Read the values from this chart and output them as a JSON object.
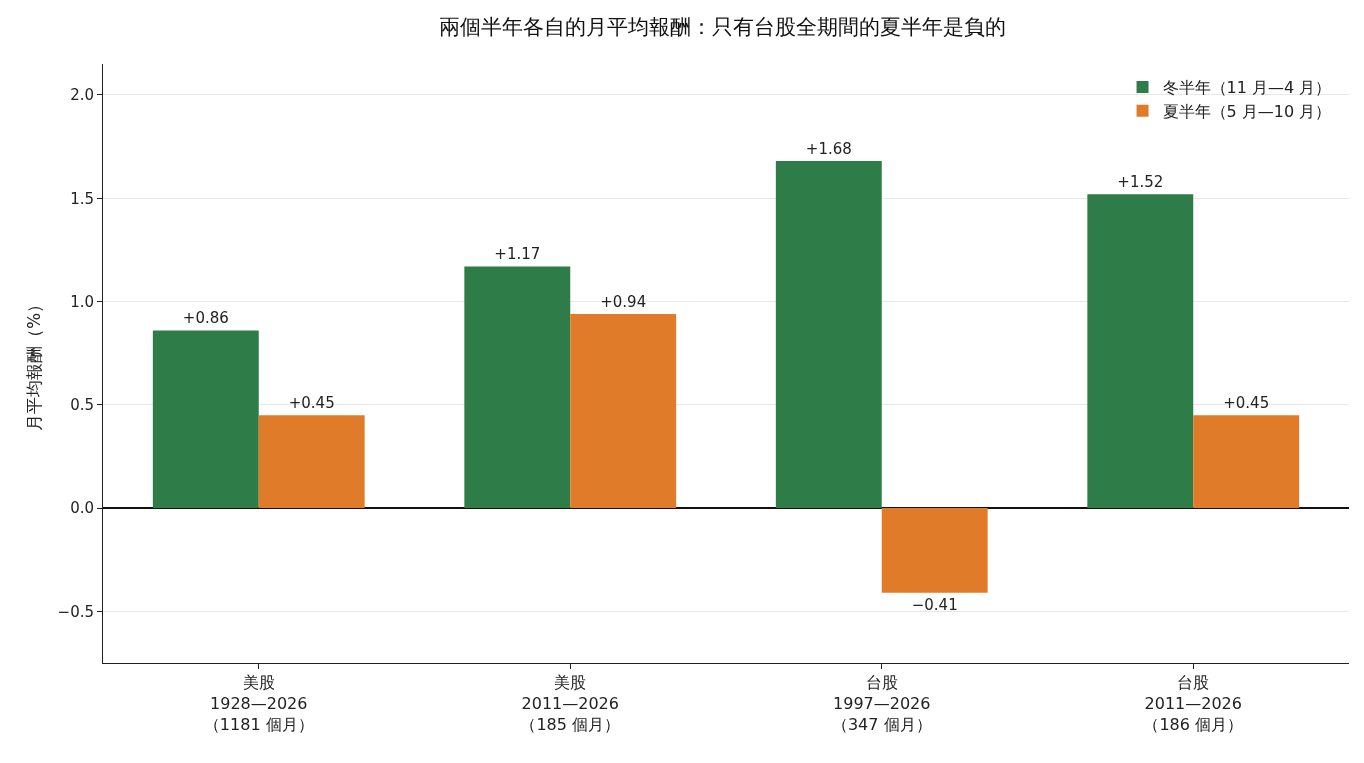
{
  "chart_data": {
    "type": "bar",
    "title": "兩個半年各自的月平均報酬：只有台股全期間的夏半年是負的",
    "ylabel": "月平均報酬（%）",
    "categories": [
      "美股\n1928—2026\n（1181 個月）",
      "美股\n2011—2026\n（185 個月）",
      "台股\n1997—2026\n（347 個月）",
      "台股\n2011—2026\n（186 個月）"
    ],
    "series": [
      {
        "name": "冬半年（11 月—4 月）",
        "color": "#2e7d48",
        "values": [
          0.86,
          1.17,
          1.68,
          1.52
        ],
        "value_labels": [
          "+0.86",
          "+1.17",
          "+1.68",
          "+1.52"
        ]
      },
      {
        "name": "夏半年（5 月—10 月）",
        "color": "#e07b2a",
        "values": [
          0.45,
          0.94,
          -0.41,
          0.45
        ],
        "value_labels": [
          "+0.45",
          "+0.94",
          "−0.41",
          "+0.45"
        ]
      }
    ],
    "ylim": [
      -0.75,
      2.15
    ],
    "yticks": [
      {
        "value": -0.5,
        "label": "−0.5"
      },
      {
        "value": 0,
        "label": "0.0"
      },
      {
        "value": 0.5,
        "label": "0.5"
      },
      {
        "value": 1,
        "label": "1.0"
      },
      {
        "value": 1.5,
        "label": "1.5"
      },
      {
        "value": 2,
        "label": "2.0"
      }
    ],
    "grid": "y",
    "legend": "top right"
  }
}
